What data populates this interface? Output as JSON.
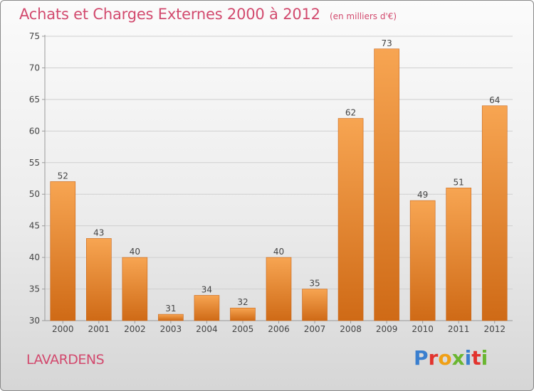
{
  "chart_data": {
    "type": "bar",
    "title": "Achats et Charges Externes 2000 à 2012",
    "subtitle": "(en milliers d'€)",
    "categories": [
      "2000",
      "2001",
      "2002",
      "2003",
      "2004",
      "2005",
      "2006",
      "2007",
      "2008",
      "2009",
      "2010",
      "2011",
      "2012"
    ],
    "values": [
      52,
      43,
      40,
      31,
      34,
      32,
      40,
      35,
      62,
      73,
      49,
      51,
      64
    ],
    "ylim": [
      30,
      75
    ],
    "yticks": [
      30,
      35,
      40,
      45,
      50,
      55,
      60,
      65,
      70,
      75
    ],
    "grid": true,
    "bar_color": "#f0882a",
    "data_labels": true
  },
  "footer": {
    "town": "LAVARDENS",
    "brand": "Proxiti"
  },
  "colors": {
    "title": "#d24a6e",
    "brand_letters": [
      "#3a7fcf",
      "#e2342e",
      "#f0a016",
      "#6ab631",
      "#3a7fcf",
      "#e2342e",
      "#6ab631"
    ]
  }
}
